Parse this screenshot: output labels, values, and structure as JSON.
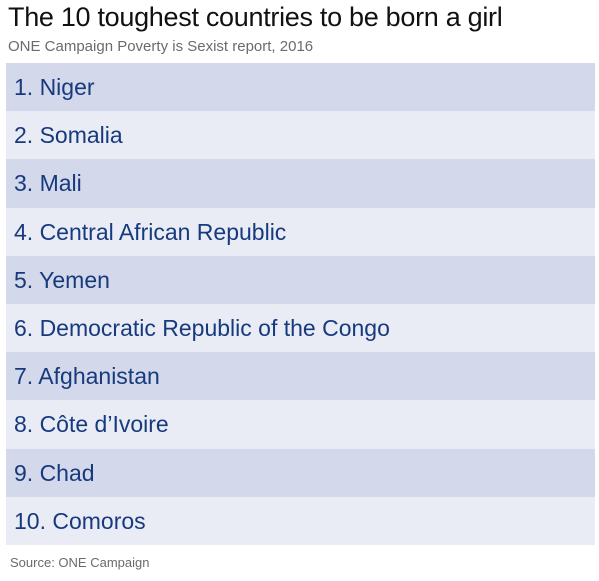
{
  "title": "The 10 toughest countries to be born a girl",
  "subtitle": "ONE Campaign Poverty is Sexist report, 2016",
  "rows": [
    "1. Niger",
    "2. Somalia",
    "3. Mali",
    "4. Central African Republic",
    "5. Yemen",
    "6. Democratic Republic of the Congo",
    "7. Afghanistan",
    "8. Côte d’Ivoire",
    "9. Chad",
    "10. Comoros"
  ],
  "source": "Source: ONE Campaign"
}
